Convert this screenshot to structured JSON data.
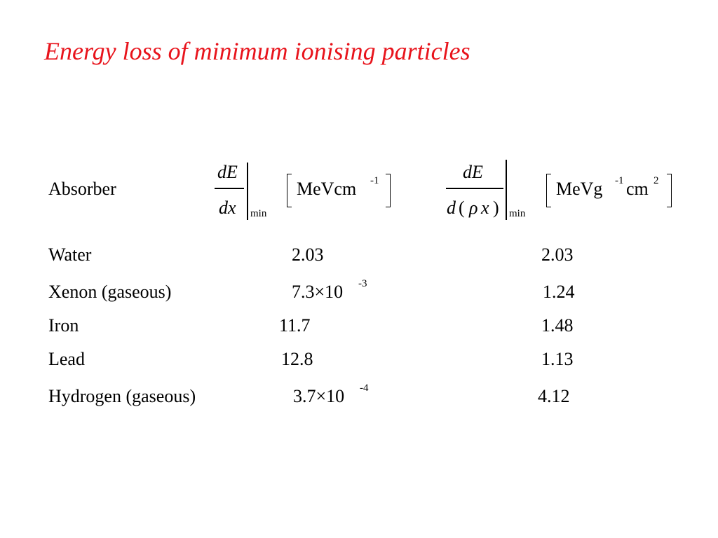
{
  "title": "Energy loss of minimum ionising particles",
  "header": {
    "absorber": "Absorber",
    "col1": {
      "numerator": "dE",
      "denominator": "dx",
      "subscript": "min",
      "unit": "MeVcm",
      "unit_exp": "-1"
    },
    "col2": {
      "numerator": "dE",
      "denom_d": "d",
      "denom_paren_open": "(",
      "denom_rho": "ρ",
      "denom_x": "x",
      "denom_paren_close": ")",
      "subscript": "min",
      "unit_a": "MeVg",
      "unit_a_exp": "-1",
      "unit_b": "cm",
      "unit_b_exp": "2"
    }
  },
  "rows": [
    {
      "absorber": "Water",
      "col1_mantissa": "2.03",
      "col1_exp": "",
      "col2": "2.03"
    },
    {
      "absorber": "Xenon (gaseous)",
      "col1_mantissa": "7.3×10",
      "col1_exp": "-3",
      "col2": "1.24"
    },
    {
      "absorber": "Iron",
      "col1_mantissa": "11.7",
      "col1_exp": "",
      "col2": "1.48"
    },
    {
      "absorber": "Lead",
      "col1_mantissa": "12.8",
      "col1_exp": "",
      "col2": "1.13"
    },
    {
      "absorber": "Hydrogen (gaseous)",
      "col1_mantissa": "3.7×10",
      "col1_exp": "-4",
      "col2": "4.12"
    }
  ]
}
